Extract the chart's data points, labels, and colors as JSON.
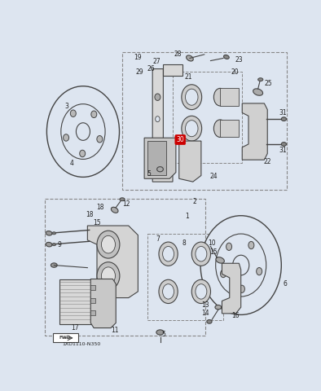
{
  "bg_color": "#dde5f0",
  "line_color": "#444444",
  "dashed_color": "#888888",
  "highlight_color": "#cc0000",
  "text_color": "#222222",
  "part_number_label": "1XD1110-N350"
}
